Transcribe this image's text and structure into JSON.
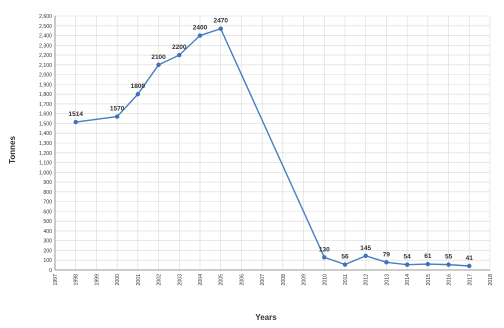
{
  "chart_data": {
    "type": "line",
    "xlabel": "Years",
    "ylabel": "Tonnes",
    "xlim": [
      1997,
      2018
    ],
    "ylim": [
      0,
      2600
    ],
    "y_tick_step": 100,
    "x_ticks": [
      1997,
      1998,
      1999,
      2000,
      2001,
      2002,
      2003,
      2004,
      2005,
      2006,
      2007,
      2008,
      2009,
      2010,
      2011,
      2012,
      2013,
      2014,
      2015,
      2016,
      2017,
      2018
    ],
    "grid": true,
    "legend": "none",
    "colors": {
      "line": "#4a7ec4",
      "marker": "#3f72b8",
      "grid": "#d9d9d9",
      "axis": "#808080",
      "text": "#333333"
    },
    "series": [
      {
        "x": [
          1998,
          2000,
          2001,
          2002,
          2003,
          2004,
          2005,
          2010,
          2011,
          2012,
          2013,
          2014,
          2015,
          2016,
          2017
        ],
        "values": [
          1514,
          1570,
          1800,
          2100,
          2200,
          2400,
          2470,
          130,
          56,
          145,
          79,
          54,
          61,
          55,
          41
        ],
        "labels": [
          "1514",
          "1570",
          "1800",
          "2100",
          "2200",
          "2400",
          "2470",
          "130",
          "56",
          "145",
          "79",
          "54",
          "61",
          "55",
          "41"
        ]
      }
    ]
  }
}
